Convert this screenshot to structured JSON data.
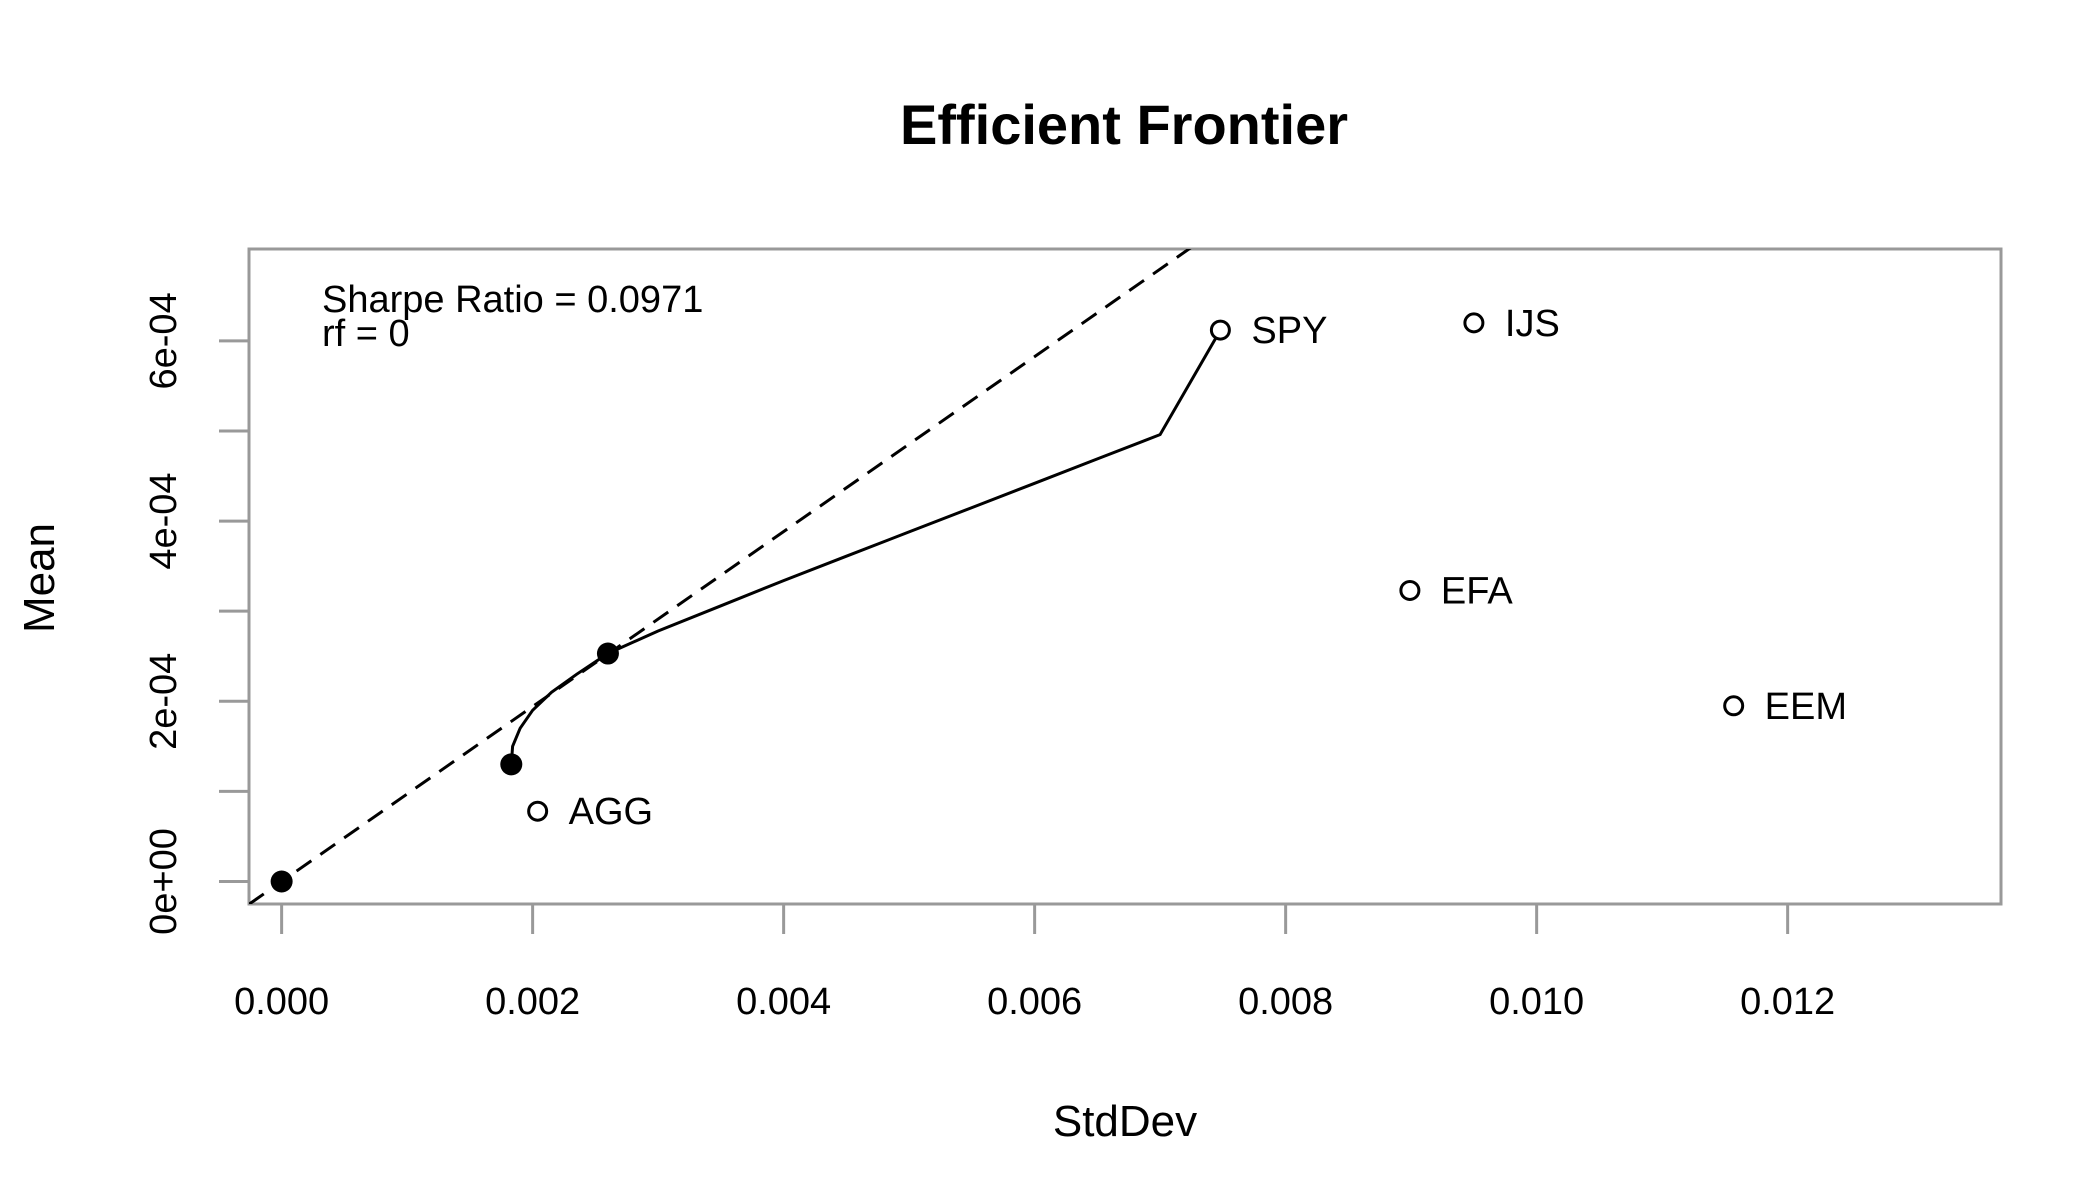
{
  "chart_data": {
    "type": "scatter",
    "title": "Efficient Frontier",
    "xlabel": "StdDev",
    "ylabel": "Mean",
    "xlim": [
      -0.00026,
      0.0137
    ],
    "ylim": [
      -2.5e-05,
      0.000702
    ],
    "x_ticks": [
      {
        "value": 0.0,
        "label": "0.000"
      },
      {
        "value": 0.002,
        "label": "0.002"
      },
      {
        "value": 0.004,
        "label": "0.004"
      },
      {
        "value": 0.006,
        "label": "0.006"
      },
      {
        "value": 0.008,
        "label": "0.008"
      },
      {
        "value": 0.01,
        "label": "0.010"
      },
      {
        "value": 0.012,
        "label": "0.012"
      }
    ],
    "y_ticks": [
      {
        "value": 0.0,
        "label": "0e+00"
      },
      {
        "value": 0.0001,
        "label": ""
      },
      {
        "value": 0.0002,
        "label": "2e-04"
      },
      {
        "value": 0.0003,
        "label": ""
      },
      {
        "value": 0.0004,
        "label": "4e-04"
      },
      {
        "value": 0.0005,
        "label": ""
      },
      {
        "value": 0.0006,
        "label": "6e-04"
      }
    ],
    "assets": [
      {
        "name": "SPY",
        "x": 0.00748,
        "y": 0.000612
      },
      {
        "name": "IJS",
        "x": 0.0095,
        "y": 0.00062
      },
      {
        "name": "EFA",
        "x": 0.00899,
        "y": 0.000323
      },
      {
        "name": "EEM",
        "x": 0.01157,
        "y": 0.000195
      },
      {
        "name": "AGG",
        "x": 0.00204,
        "y": 7.8e-05
      }
    ],
    "frontier": [
      [
        0.00183,
        0.00013
      ],
      [
        0.00184,
        0.00015
      ],
      [
        0.0019,
        0.00017
      ],
      [
        0.002,
        0.00019
      ],
      [
        0.00215,
        0.00021
      ],
      [
        0.00235,
        0.00023
      ],
      [
        0.0026,
        0.000253
      ],
      [
        0.003,
        0.000278
      ],
      [
        0.0035,
        0.000306
      ],
      [
        0.004,
        0.000334
      ],
      [
        0.0045,
        0.000361
      ],
      [
        0.005,
        0.000388
      ],
      [
        0.0055,
        0.000415
      ],
      [
        0.006,
        0.000442
      ],
      [
        0.0065,
        0.000469
      ],
      [
        0.007,
        0.000496
      ],
      [
        0.00748,
        0.000612
      ]
    ],
    "special_points": [
      {
        "name": "risk-free",
        "x": 0.0,
        "y": 0.0
      },
      {
        "name": "min-variance",
        "x": 0.00183,
        "y": 0.00013
      },
      {
        "name": "tangency",
        "x": 0.0026,
        "y": 0.000253
      }
    ],
    "capital_market_line": {
      "intercept": 0.0,
      "slope": 0.0971
    },
    "annotations": [
      "Sharpe Ratio = 0.0971",
      "rf = 0"
    ],
    "grid": false,
    "colors": {
      "axis": "#999999",
      "line": "#000000",
      "point": "#000000"
    }
  }
}
